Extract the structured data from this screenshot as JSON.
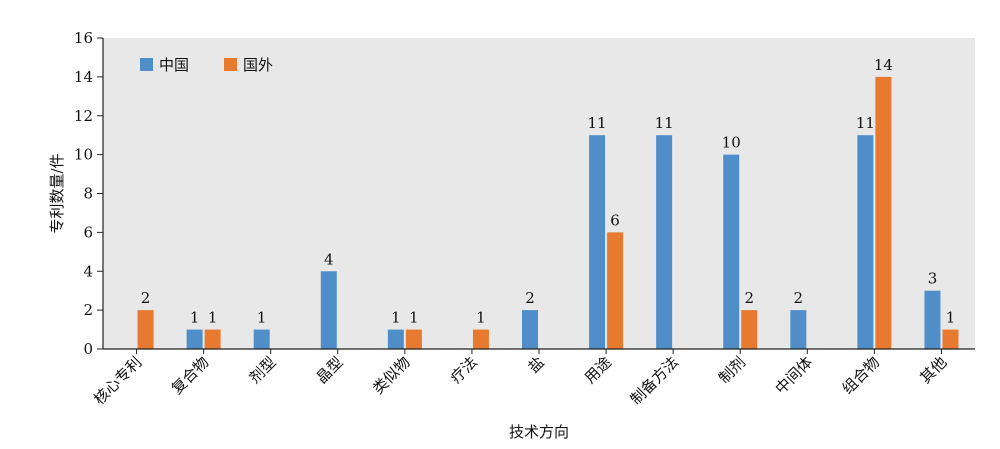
{
  "chart_data": {
    "type": "bar",
    "xlabel": "技术方向",
    "ylabel": "专利数量/件",
    "ylim": [
      0,
      16
    ],
    "yticks": [
      0,
      2,
      4,
      6,
      8,
      10,
      12,
      14,
      16
    ],
    "grid": false,
    "legend_position": "top-left",
    "background_color": "#e8e8e8",
    "categories": [
      "核心专利",
      "复合物",
      "剂型",
      "晶型",
      "类似物",
      "疗法",
      "盐",
      "用途",
      "制备方法",
      "制剂",
      "中间体",
      "组合物",
      "其他"
    ],
    "series": [
      {
        "name": "中国",
        "color": "#4f8ec9",
        "values": [
          null,
          1,
          1,
          4,
          1,
          null,
          2,
          11,
          11,
          10,
          2,
          11,
          3
        ]
      },
      {
        "name": "国外",
        "color": "#e87a2f",
        "values": [
          2,
          1,
          null,
          null,
          1,
          1,
          null,
          6,
          null,
          2,
          null,
          14,
          1
        ]
      }
    ]
  }
}
